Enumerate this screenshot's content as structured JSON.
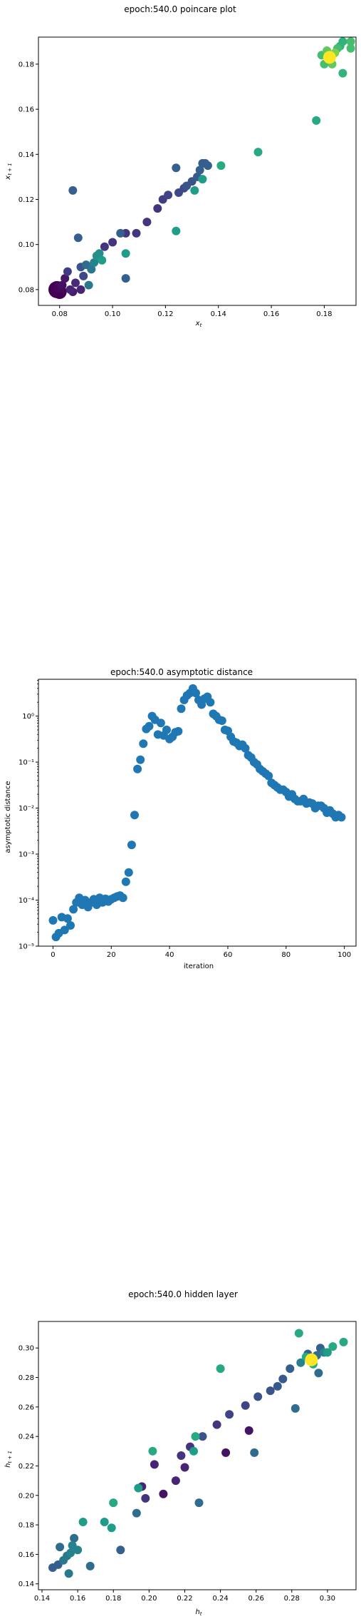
{
  "chart_data": [
    {
      "type": "scatter",
      "title": "epoch:540.0 poincare plot",
      "xlabel": "x_t",
      "ylabel": "x_{t+1}",
      "xlim": [
        0.072,
        0.192
      ],
      "ylim": [
        0.073,
        0.192
      ],
      "xticks": [
        0.08,
        0.1,
        0.12,
        0.14,
        0.16,
        0.18
      ],
      "xtick_labels": [
        "0.08",
        "0.10",
        "0.12",
        "0.14",
        "0.16",
        "0.18"
      ],
      "yticks": [
        0.08,
        0.1,
        0.12,
        0.14,
        0.16,
        0.18
      ],
      "ytick_labels": [
        "0.08",
        "0.10",
        "0.12",
        "0.14",
        "0.16",
        "0.18"
      ],
      "colormap": "viridis",
      "points": [
        {
          "x": 0.079,
          "y": 0.08,
          "c": 0.0,
          "s": 12
        },
        {
          "x": 0.08,
          "y": 0.079,
          "c": 0.0,
          "s": 10
        },
        {
          "x": 0.08,
          "y": 0.081,
          "c": 0.02,
          "s": 8
        },
        {
          "x": 0.081,
          "y": 0.082,
          "c": 0.04,
          "s": 6
        },
        {
          "x": 0.082,
          "y": 0.085,
          "c": 0.06,
          "s": 6
        },
        {
          "x": 0.083,
          "y": 0.088,
          "c": 0.18,
          "s": 6
        },
        {
          "x": 0.084,
          "y": 0.08,
          "c": 0.1,
          "s": 6
        },
        {
          "x": 0.085,
          "y": 0.079,
          "c": 0.08,
          "s": 6
        },
        {
          "x": 0.085,
          "y": 0.124,
          "c": 0.3,
          "s": 6
        },
        {
          "x": 0.086,
          "y": 0.083,
          "c": 0.12,
          "s": 6
        },
        {
          "x": 0.087,
          "y": 0.103,
          "c": 0.3,
          "s": 6
        },
        {
          "x": 0.088,
          "y": 0.08,
          "c": 0.1,
          "s": 6
        },
        {
          "x": 0.088,
          "y": 0.09,
          "c": 0.25,
          "s": 6
        },
        {
          "x": 0.089,
          "y": 0.086,
          "c": 0.22,
          "s": 6
        },
        {
          "x": 0.09,
          "y": 0.091,
          "c": 0.35,
          "s": 6
        },
        {
          "x": 0.091,
          "y": 0.082,
          "c": 0.4,
          "s": 6
        },
        {
          "x": 0.092,
          "y": 0.089,
          "c": 0.4,
          "s": 6
        },
        {
          "x": 0.093,
          "y": 0.092,
          "c": 0.45,
          "s": 6
        },
        {
          "x": 0.094,
          "y": 0.095,
          "c": 0.5,
          "s": 6
        },
        {
          "x": 0.095,
          "y": 0.096,
          "c": 0.5,
          "s": 6
        },
        {
          "x": 0.096,
          "y": 0.093,
          "c": 0.55,
          "s": 6
        },
        {
          "x": 0.097,
          "y": 0.099,
          "c": 0.15,
          "s": 6
        },
        {
          "x": 0.1,
          "y": 0.101,
          "c": 0.15,
          "s": 6
        },
        {
          "x": 0.103,
          "y": 0.105,
          "c": 0.3,
          "s": 6
        },
        {
          "x": 0.105,
          "y": 0.085,
          "c": 0.3,
          "s": 6
        },
        {
          "x": 0.105,
          "y": 0.096,
          "c": 0.55,
          "s": 6
        },
        {
          "x": 0.105,
          "y": 0.105,
          "c": 0.15,
          "s": 6
        },
        {
          "x": 0.109,
          "y": 0.105,
          "c": 0.15,
          "s": 6
        },
        {
          "x": 0.113,
          "y": 0.11,
          "c": 0.15,
          "s": 6
        },
        {
          "x": 0.117,
          "y": 0.116,
          "c": 0.15,
          "s": 6
        },
        {
          "x": 0.119,
          "y": 0.12,
          "c": 0.18,
          "s": 6
        },
        {
          "x": 0.121,
          "y": 0.122,
          "c": 0.2,
          "s": 6
        },
        {
          "x": 0.124,
          "y": 0.106,
          "c": 0.55,
          "s": 6
        },
        {
          "x": 0.124,
          "y": 0.134,
          "c": 0.3,
          "s": 6
        },
        {
          "x": 0.125,
          "y": 0.123,
          "c": 0.22,
          "s": 6
        },
        {
          "x": 0.127,
          "y": 0.125,
          "c": 0.22,
          "s": 6
        },
        {
          "x": 0.128,
          "y": 0.126,
          "c": 0.25,
          "s": 6
        },
        {
          "x": 0.13,
          "y": 0.128,
          "c": 0.25,
          "s": 6
        },
        {
          "x": 0.131,
          "y": 0.124,
          "c": 0.55,
          "s": 6
        },
        {
          "x": 0.132,
          "y": 0.13,
          "c": 0.28,
          "s": 6
        },
        {
          "x": 0.133,
          "y": 0.133,
          "c": 0.3,
          "s": 6
        },
        {
          "x": 0.134,
          "y": 0.136,
          "c": 0.3,
          "s": 6
        },
        {
          "x": 0.135,
          "y": 0.136,
          "c": 0.3,
          "s": 6
        },
        {
          "x": 0.136,
          "y": 0.135,
          "c": 0.3,
          "s": 6
        },
        {
          "x": 0.134,
          "y": 0.129,
          "c": 0.55,
          "s": 6
        },
        {
          "x": 0.141,
          "y": 0.135,
          "c": 0.6,
          "s": 6
        },
        {
          "x": 0.155,
          "y": 0.141,
          "c": 0.6,
          "s": 6
        },
        {
          "x": 0.177,
          "y": 0.155,
          "c": 0.6,
          "s": 6
        },
        {
          "x": 0.179,
          "y": 0.184,
          "c": 0.7,
          "s": 6
        },
        {
          "x": 0.18,
          "y": 0.18,
          "c": 0.7,
          "s": 6
        },
        {
          "x": 0.181,
          "y": 0.186,
          "c": 0.75,
          "s": 6
        },
        {
          "x": 0.182,
          "y": 0.183,
          "c": 1.0,
          "s": 9
        },
        {
          "x": 0.183,
          "y": 0.18,
          "c": 0.75,
          "s": 6
        },
        {
          "x": 0.184,
          "y": 0.185,
          "c": 0.8,
          "s": 6
        },
        {
          "x": 0.185,
          "y": 0.187,
          "c": 0.7,
          "s": 6
        },
        {
          "x": 0.186,
          "y": 0.188,
          "c": 0.65,
          "s": 6
        },
        {
          "x": 0.187,
          "y": 0.176,
          "c": 0.65,
          "s": 6
        },
        {
          "x": 0.187,
          "y": 0.19,
          "c": 0.65,
          "s": 6
        },
        {
          "x": 0.19,
          "y": 0.187,
          "c": 0.7,
          "s": 6
        },
        {
          "x": 0.19,
          "y": 0.19,
          "c": 0.7,
          "s": 6
        }
      ]
    },
    {
      "type": "scatter",
      "title": "epoch:540.0 asymptotic distance",
      "xlabel": "iteration",
      "ylabel": "asymptotic distance",
      "yscale": "log",
      "xlim": [
        -5,
        104
      ],
      "ylim_log10": [
        -5,
        0.8
      ],
      "xticks": [
        0,
        20,
        40,
        60,
        80,
        100
      ],
      "xtick_labels": [
        "0",
        "20",
        "40",
        "60",
        "80",
        "100"
      ],
      "yticks_log10": [
        -5,
        -4,
        -3,
        -2,
        -1,
        0
      ],
      "ytick_labels": [
        "10⁻⁵",
        "10⁻⁴",
        "10⁻³",
        "10⁻²",
        "10⁻¹",
        "10⁰"
      ],
      "color": "#1f77b4",
      "x": [
        0,
        1,
        2,
        3,
        4,
        5,
        6,
        7,
        8,
        9,
        10,
        11,
        12,
        13,
        14,
        15,
        16,
        17,
        18,
        19,
        20,
        21,
        22,
        23,
        24,
        25,
        26,
        27,
        28,
        29,
        30,
        31,
        32,
        33,
        34,
        35,
        36,
        37,
        38,
        39,
        40,
        41,
        42,
        43,
        44,
        45,
        46,
        47,
        48,
        49,
        50,
        51,
        52,
        53,
        54,
        55,
        56,
        57,
        58,
        59,
        60,
        61,
        62,
        63,
        64,
        65,
        66,
        67,
        68,
        69,
        70,
        71,
        72,
        73,
        74,
        75,
        76,
        77,
        78,
        79,
        80,
        81,
        82,
        83,
        84,
        85,
        86,
        87,
        88,
        89,
        90,
        91,
        92,
        93,
        94,
        95,
        96,
        97,
        98,
        99
      ],
      "log10_y": [
        -4.44,
        -4.8,
        -4.72,
        -4.37,
        -4.65,
        -4.4,
        -4.55,
        -4.2,
        -4.05,
        -3.95,
        -4.1,
        -4.0,
        -4.15,
        -4.05,
        -3.98,
        -4.1,
        -3.95,
        -4.05,
        -3.97,
        -4.03,
        -3.98,
        -3.95,
        -3.92,
        -3.9,
        -3.95,
        -3.6,
        -3.4,
        -2.8,
        -2.15,
        -1.15,
        -0.95,
        -0.6,
        -0.28,
        -0.22,
        0.0,
        -0.08,
        -0.4,
        -0.15,
        -0.42,
        -0.3,
        -0.5,
        -0.45,
        -0.35,
        -0.33,
        0.16,
        0.35,
        0.45,
        0.5,
        0.6,
        0.5,
        0.35,
        0.25,
        0.38,
        0.42,
        0.3,
        0.05,
        0.0,
        -0.08,
        -0.1,
        -0.3,
        -0.32,
        -0.45,
        -0.55,
        -0.58,
        -0.65,
        -0.62,
        -0.7,
        -0.85,
        -0.9,
        -1.0,
        -1.05,
        -1.15,
        -1.2,
        -1.25,
        -1.3,
        -1.45,
        -1.5,
        -1.55,
        -1.6,
        -1.6,
        -1.65,
        -1.75,
        -1.7,
        -1.8,
        -1.85,
        -1.85,
        -1.8,
        -1.9,
        -1.88,
        -1.9,
        -2.0,
        -1.95,
        -1.95,
        -2.0,
        -2.1,
        -2.05,
        -2.12,
        -2.2,
        -2.15,
        -2.2
      ]
    },
    {
      "type": "scatter",
      "title": "epoch:540.0 hidden layer",
      "xlabel": "h_t",
      "ylabel": "h_{t+1}",
      "xlim": [
        0.138,
        0.316
      ],
      "ylim": [
        0.136,
        0.318
      ],
      "xticks": [
        0.14,
        0.16,
        0.18,
        0.2,
        0.22,
        0.24,
        0.26,
        0.28,
        0.3
      ],
      "xtick_labels": [
        "0.14",
        "0.16",
        "0.18",
        "0.20",
        "0.22",
        "0.24",
        "0.26",
        "0.28",
        "0.30"
      ],
      "yticks": [
        0.14,
        0.16,
        0.18,
        0.2,
        0.22,
        0.24,
        0.26,
        0.28,
        0.3
      ],
      "ytick_labels": [
        "0.14",
        "0.16",
        "0.18",
        "0.20",
        "0.22",
        "0.24",
        "0.26",
        "0.28",
        "0.30"
      ],
      "colormap": "viridis",
      "points": [
        {
          "x": 0.146,
          "y": 0.151,
          "c": 0.3,
          "s": 6
        },
        {
          "x": 0.149,
          "y": 0.153,
          "c": 0.3,
          "s": 6
        },
        {
          "x": 0.15,
          "y": 0.165,
          "c": 0.35,
          "s": 6
        },
        {
          "x": 0.152,
          "y": 0.156,
          "c": 0.4,
          "s": 6
        },
        {
          "x": 0.154,
          "y": 0.159,
          "c": 0.4,
          "s": 6
        },
        {
          "x": 0.155,
          "y": 0.147,
          "c": 0.4,
          "s": 6
        },
        {
          "x": 0.156,
          "y": 0.161,
          "c": 0.45,
          "s": 6
        },
        {
          "x": 0.157,
          "y": 0.166,
          "c": 0.45,
          "s": 6
        },
        {
          "x": 0.158,
          "y": 0.171,
          "c": 0.35,
          "s": 6
        },
        {
          "x": 0.16,
          "y": 0.163,
          "c": 0.45,
          "s": 6
        },
        {
          "x": 0.163,
          "y": 0.182,
          "c": 0.55,
          "s": 6
        },
        {
          "x": 0.167,
          "y": 0.152,
          "c": 0.35,
          "s": 6
        },
        {
          "x": 0.175,
          "y": 0.182,
          "c": 0.55,
          "s": 6
        },
        {
          "x": 0.179,
          "y": 0.178,
          "c": 0.55,
          "s": 6
        },
        {
          "x": 0.18,
          "y": 0.195,
          "c": 0.6,
          "s": 6
        },
        {
          "x": 0.184,
          "y": 0.163,
          "c": 0.3,
          "s": 6
        },
        {
          "x": 0.193,
          "y": 0.188,
          "c": 0.35,
          "s": 6
        },
        {
          "x": 0.194,
          "y": 0.205,
          "c": 0.55,
          "s": 6
        },
        {
          "x": 0.196,
          "y": 0.206,
          "c": 0.1,
          "s": 6
        },
        {
          "x": 0.198,
          "y": 0.198,
          "c": 0.15,
          "s": 6
        },
        {
          "x": 0.202,
          "y": 0.23,
          "c": 0.6,
          "s": 6
        },
        {
          "x": 0.203,
          "y": 0.221,
          "c": 0.1,
          "s": 6
        },
        {
          "x": 0.208,
          "y": 0.201,
          "c": 0.05,
          "s": 6
        },
        {
          "x": 0.215,
          "y": 0.21,
          "c": 0.1,
          "s": 6
        },
        {
          "x": 0.218,
          "y": 0.227,
          "c": 0.15,
          "s": 6
        },
        {
          "x": 0.22,
          "y": 0.219,
          "c": 0.1,
          "s": 6
        },
        {
          "x": 0.223,
          "y": 0.233,
          "c": 0.15,
          "s": 6
        },
        {
          "x": 0.225,
          "y": 0.23,
          "c": 0.55,
          "s": 6
        },
        {
          "x": 0.226,
          "y": 0.24,
          "c": 0.6,
          "s": 6
        },
        {
          "x": 0.228,
          "y": 0.195,
          "c": 0.35,
          "s": 6
        },
        {
          "x": 0.23,
          "y": 0.24,
          "c": 0.25,
          "s": 6
        },
        {
          "x": 0.238,
          "y": 0.248,
          "c": 0.15,
          "s": 6
        },
        {
          "x": 0.24,
          "y": 0.286,
          "c": 0.6,
          "s": 6
        },
        {
          "x": 0.243,
          "y": 0.229,
          "c": 0.05,
          "s": 6
        },
        {
          "x": 0.245,
          "y": 0.255,
          "c": 0.2,
          "s": 6
        },
        {
          "x": 0.254,
          "y": 0.261,
          "c": 0.2,
          "s": 6
        },
        {
          "x": 0.256,
          "y": 0.244,
          "c": 0.05,
          "s": 6
        },
        {
          "x": 0.259,
          "y": 0.229,
          "c": 0.35,
          "s": 6
        },
        {
          "x": 0.261,
          "y": 0.267,
          "c": 0.25,
          "s": 6
        },
        {
          "x": 0.268,
          "y": 0.271,
          "c": 0.25,
          "s": 6
        },
        {
          "x": 0.272,
          "y": 0.274,
          "c": 0.28,
          "s": 6
        },
        {
          "x": 0.275,
          "y": 0.279,
          "c": 0.28,
          "s": 6
        },
        {
          "x": 0.279,
          "y": 0.286,
          "c": 0.3,
          "s": 6
        },
        {
          "x": 0.282,
          "y": 0.259,
          "c": 0.35,
          "s": 6
        },
        {
          "x": 0.284,
          "y": 0.31,
          "c": 0.6,
          "s": 6
        },
        {
          "x": 0.285,
          "y": 0.29,
          "c": 0.45,
          "s": 6
        },
        {
          "x": 0.288,
          "y": 0.294,
          "c": 0.6,
          "s": 6
        },
        {
          "x": 0.289,
          "y": 0.296,
          "c": 0.3,
          "s": 6
        },
        {
          "x": 0.291,
          "y": 0.292,
          "c": 1.0,
          "s": 9
        },
        {
          "x": 0.292,
          "y": 0.289,
          "c": 0.6,
          "s": 6
        },
        {
          "x": 0.294,
          "y": 0.295,
          "c": 0.35,
          "s": 6
        },
        {
          "x": 0.295,
          "y": 0.283,
          "c": 0.35,
          "s": 6
        },
        {
          "x": 0.296,
          "y": 0.3,
          "c": 0.3,
          "s": 6
        },
        {
          "x": 0.298,
          "y": 0.297,
          "c": 0.45,
          "s": 6
        },
        {
          "x": 0.3,
          "y": 0.297,
          "c": 0.55,
          "s": 6
        },
        {
          "x": 0.303,
          "y": 0.301,
          "c": 0.6,
          "s": 6
        },
        {
          "x": 0.309,
          "y": 0.304,
          "c": 0.6,
          "s": 6
        }
      ]
    }
  ]
}
